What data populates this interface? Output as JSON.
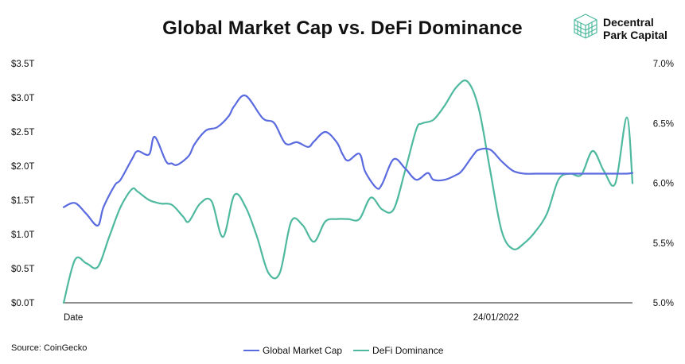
{
  "chart_data": {
    "type": "line",
    "title": "Global Market Cap vs. DeFi Dominance",
    "source": "Source: CoinGecko",
    "brand": {
      "line1": "Decentral",
      "line2": "Park Capital"
    },
    "x_tick_labels": [
      "Date",
      "24/01/2022"
    ],
    "y_left": {
      "ticks": [
        "$0.0T",
        "$0.5T",
        "$1.0T",
        "$1.5T",
        "$2.0T",
        "$2.5T",
        "$3.0T",
        "$3.5T"
      ],
      "range": [
        0,
        3.5
      ],
      "unit": "T USD"
    },
    "y_right": {
      "ticks": [
        "5.0%",
        "5.5%",
        "6.0%",
        "6.5%",
        "7.0%"
      ],
      "range": [
        5.0,
        7.0
      ],
      "unit": "%"
    },
    "grid": false,
    "legend_position": "bottom",
    "series": [
      {
        "name": "Global Market Cap",
        "axis": "left",
        "color": "#5a6adf",
        "x": [
          0,
          2,
          4,
          6,
          7,
          9,
          10,
          12,
          13,
          15,
          16,
          18,
          19,
          20,
          22,
          23,
          25,
          27,
          29,
          30,
          32,
          35,
          37,
          39,
          41,
          43,
          44,
          46,
          48,
          49,
          50,
          52,
          53,
          55,
          56,
          58,
          60,
          62,
          64,
          65,
          67,
          69,
          70,
          72,
          73,
          75,
          77,
          79,
          81,
          83,
          85,
          87,
          89,
          91,
          93,
          94,
          96,
          99,
          100
        ],
        "values": [
          1.4,
          1.46,
          1.3,
          1.13,
          1.4,
          1.72,
          1.8,
          2.1,
          2.22,
          2.17,
          2.43,
          2.07,
          2.04,
          2.02,
          2.15,
          2.32,
          2.52,
          2.57,
          2.73,
          2.88,
          3.03,
          2.7,
          2.63,
          2.33,
          2.35,
          2.28,
          2.36,
          2.5,
          2.35,
          2.18,
          2.08,
          2.18,
          1.92,
          1.68,
          1.74,
          2.1,
          1.97,
          1.8,
          1.9,
          1.8,
          1.8,
          1.87,
          1.93,
          2.16,
          2.24,
          2.24,
          2.07,
          1.93,
          1.89,
          1.89,
          1.89,
          1.89,
          1.89,
          1.89,
          1.89,
          1.89,
          1.89,
          1.89,
          1.9
        ]
      },
      {
        "name": "DeFi Dominance",
        "axis": "right",
        "color": "#4fb99f",
        "x": [
          0,
          2,
          4,
          6,
          8,
          10,
          12,
          13,
          15,
          17,
          19,
          21,
          22,
          24,
          26,
          28,
          30,
          32,
          34,
          36,
          38,
          40,
          42,
          44,
          46,
          48,
          50,
          52,
          54,
          56,
          58,
          60,
          62,
          63,
          65,
          67,
          69,
          71,
          73,
          75,
          77,
          79,
          81,
          83,
          85,
          87,
          89,
          91,
          93,
          95,
          97,
          99,
          100
        ],
        "values": [
          5.0,
          5.36,
          5.33,
          5.3,
          5.55,
          5.8,
          5.95,
          5.93,
          5.86,
          5.83,
          5.82,
          5.72,
          5.68,
          5.83,
          5.85,
          5.55,
          5.9,
          5.8,
          5.55,
          5.25,
          5.25,
          5.68,
          5.65,
          5.51,
          5.68,
          5.7,
          5.7,
          5.7,
          5.88,
          5.78,
          5.78,
          6.1,
          6.45,
          6.5,
          6.53,
          6.65,
          6.8,
          6.85,
          6.62,
          6.1,
          5.6,
          5.45,
          5.5,
          5.6,
          5.75,
          6.03,
          6.08,
          6.07,
          6.27,
          6.1,
          6.0,
          6.55,
          6.0
        ]
      }
    ]
  }
}
